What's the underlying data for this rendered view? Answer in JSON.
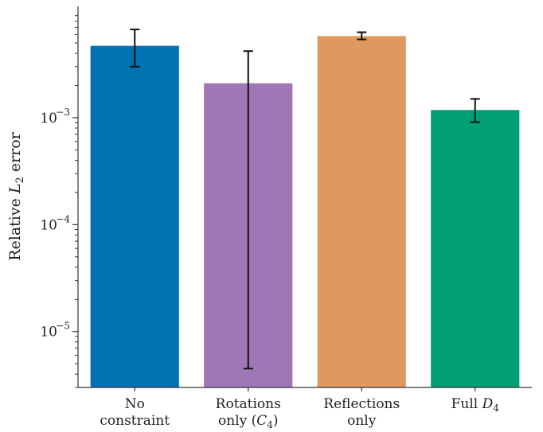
{
  "chart_data": {
    "type": "bar",
    "title": "",
    "xlabel": "",
    "ylabel": "Relative L2 error",
    "ylabel_parts": {
      "main": "Relative ",
      "var": "L",
      "sub": "2",
      "rest": " error"
    },
    "yscale": "log",
    "ylim": [
      3e-06,
      0.011
    ],
    "grid": false,
    "legend": "none",
    "categories": [
      {
        "lines": [
          {
            "text": "No"
          },
          {
            "text": "constraint"
          }
        ]
      },
      {
        "lines": [
          {
            "text": "Rotations"
          },
          {
            "text": "only (",
            "var": "C",
            "sub": "4",
            "after": ")"
          }
        ]
      },
      {
        "lines": [
          {
            "text": "Reflections"
          },
          {
            "text": "only"
          }
        ]
      },
      {
        "lines": [
          {
            "text": "Full ",
            "var": "D",
            "sub": "4"
          }
        ]
      }
    ],
    "values": [
      0.0047,
      0.0021,
      0.0058,
      0.00118
    ],
    "error_low": [
      0.003,
      4.5e-06,
      0.0054,
      0.00091
    ],
    "error_high": [
      0.0067,
      0.0042,
      0.0063,
      0.0015
    ],
    "colors": [
      "#0072b2",
      "#a077b5",
      "#de9a5e",
      "#009e73"
    ],
    "y_ticks": [
      {
        "value": 1e-05,
        "base": "10",
        "exp": "−5"
      },
      {
        "value": 0.0001,
        "base": "10",
        "exp": "−4"
      },
      {
        "value": 0.001,
        "base": "10",
        "exp": "−3"
      }
    ]
  }
}
